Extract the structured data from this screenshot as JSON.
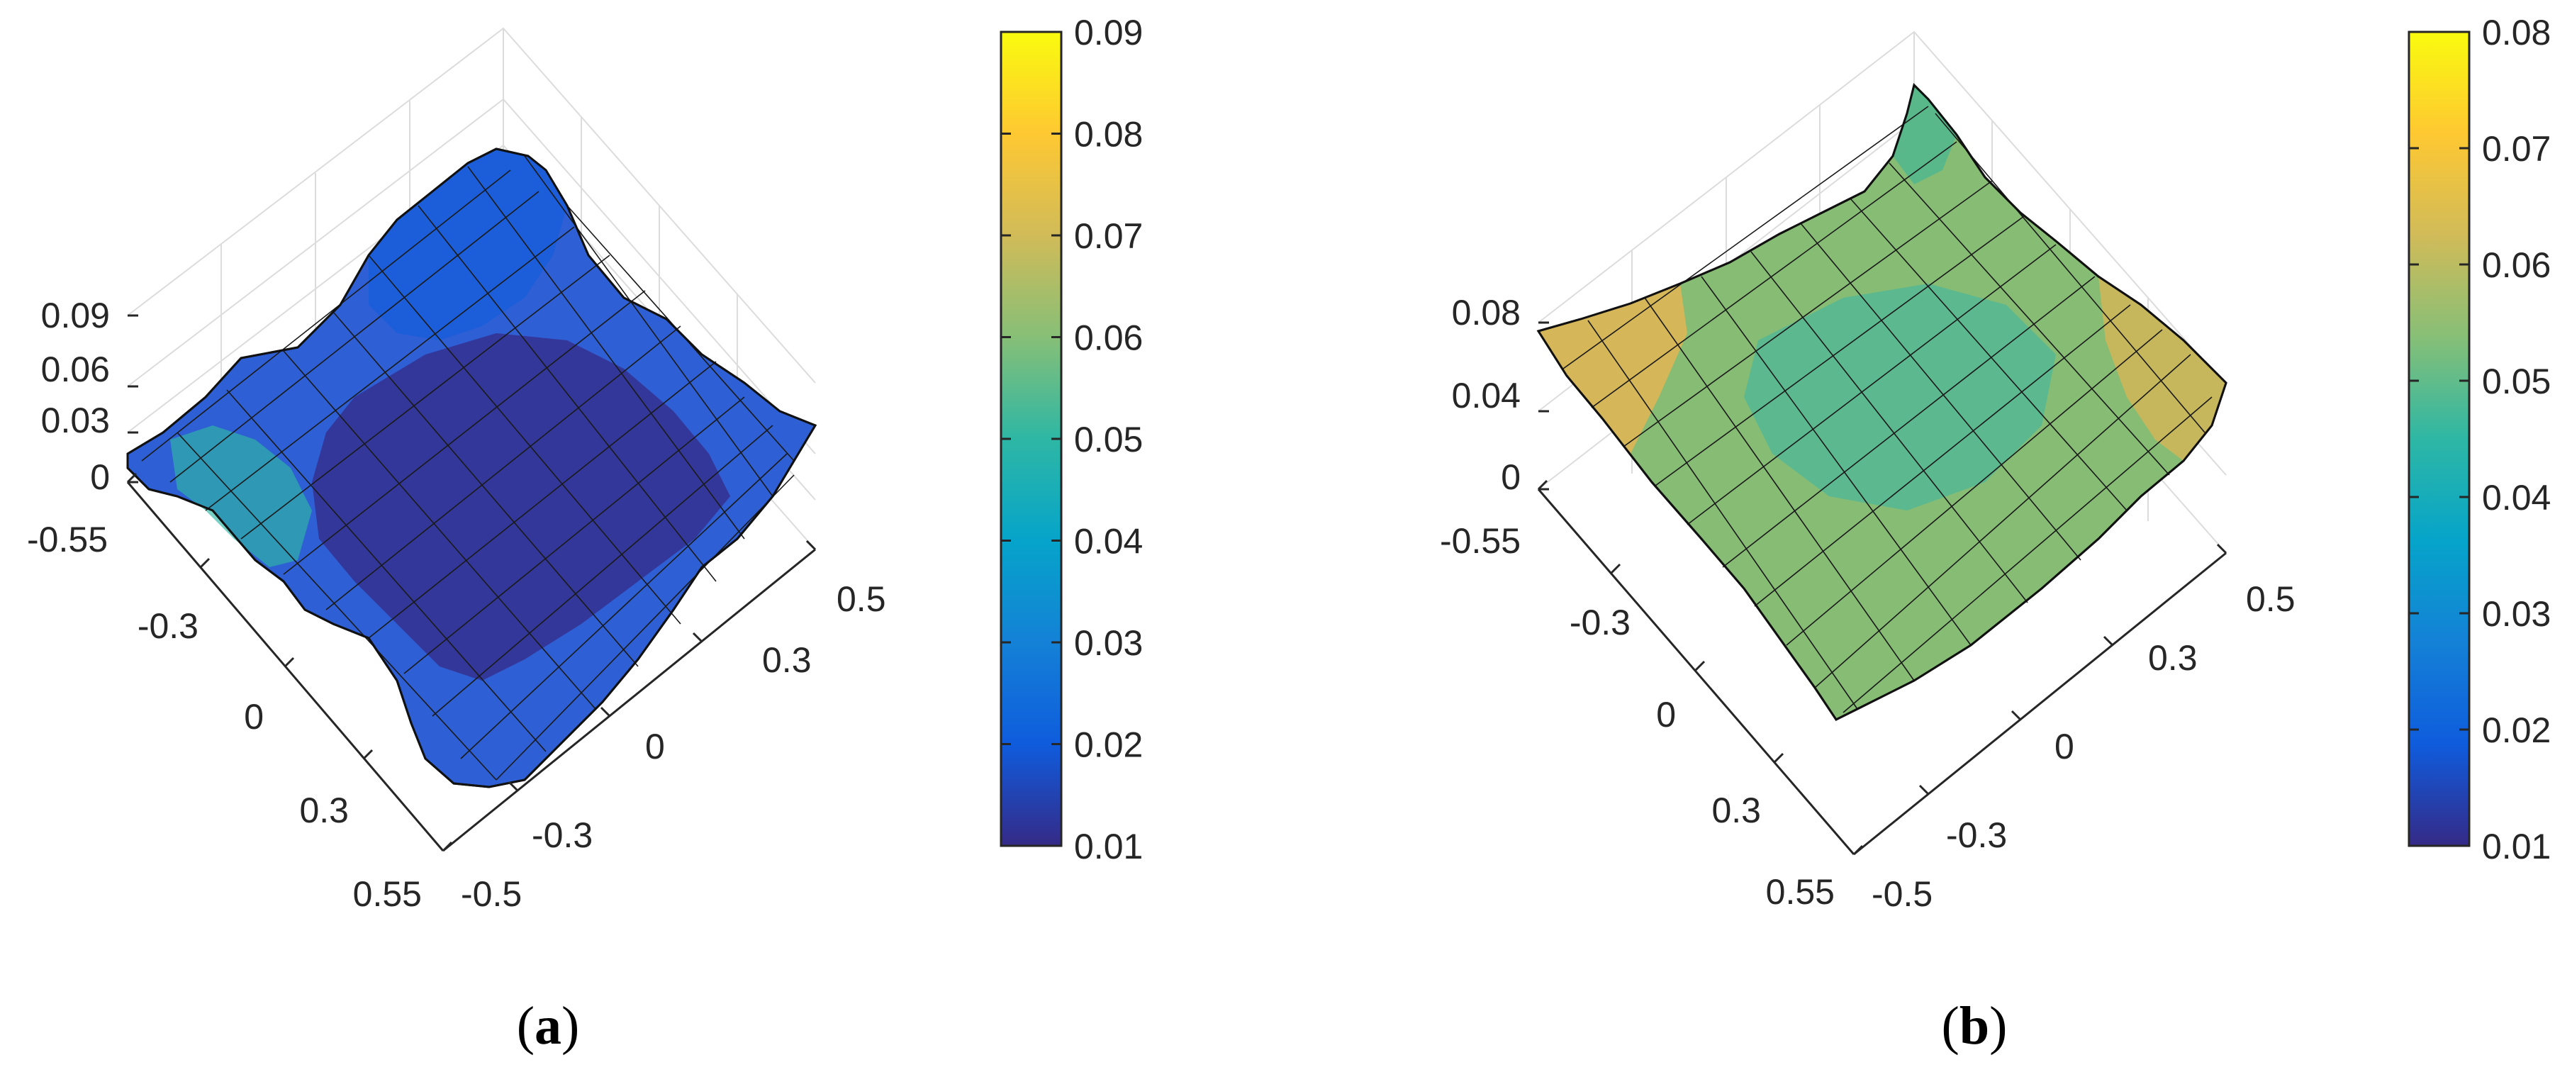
{
  "chart_data": [
    {
      "type": "surface",
      "panel_label": "a",
      "z_ticks": [
        "0.09",
        "0.06",
        "0.03",
        "0"
      ],
      "y_ticks": [
        "-0.55",
        "-0.3",
        "0",
        "0.3",
        "0.55"
      ],
      "x_ticks": [
        "0.5",
        "0.3",
        "0",
        "-0.3",
        "-0.5"
      ],
      "zlim": [
        0,
        0.09
      ],
      "xlim": [
        -0.5,
        0.5
      ],
      "ylim": [
        -0.55,
        0.55
      ],
      "colorbar": {
        "ticks": [
          "0.09",
          "0.08",
          "0.07",
          "0.06",
          "0.05",
          "0.04",
          "0.03",
          "0.02",
          "0.01"
        ],
        "range": [
          0.01,
          0.09
        ],
        "colormap": "parula"
      },
      "grid": true
    },
    {
      "type": "surface",
      "panel_label": "b",
      "z_ticks": [
        "0.08",
        "0.04",
        "0"
      ],
      "y_ticks": [
        "-0.55",
        "-0.3",
        "0",
        "0.3",
        "0.55"
      ],
      "x_ticks": [
        "0.5",
        "0.3",
        "0",
        "-0.3",
        "-0.5"
      ],
      "zlim": [
        0,
        0.08
      ],
      "xlim": [
        -0.5,
        0.5
      ],
      "ylim": [
        -0.55,
        0.55
      ],
      "colorbar": {
        "ticks": [
          "0.08",
          "0.07",
          "0.06",
          "0.05",
          "0.04",
          "0.03",
          "0.02",
          "0.01"
        ],
        "range": [
          0.01,
          0.08
        ],
        "colormap": "parula"
      },
      "grid": true
    }
  ],
  "captions": {
    "a": {
      "open": "(",
      "letter": "a",
      "close": ")"
    },
    "b": {
      "open": "(",
      "letter": "b",
      "close": ")"
    }
  }
}
